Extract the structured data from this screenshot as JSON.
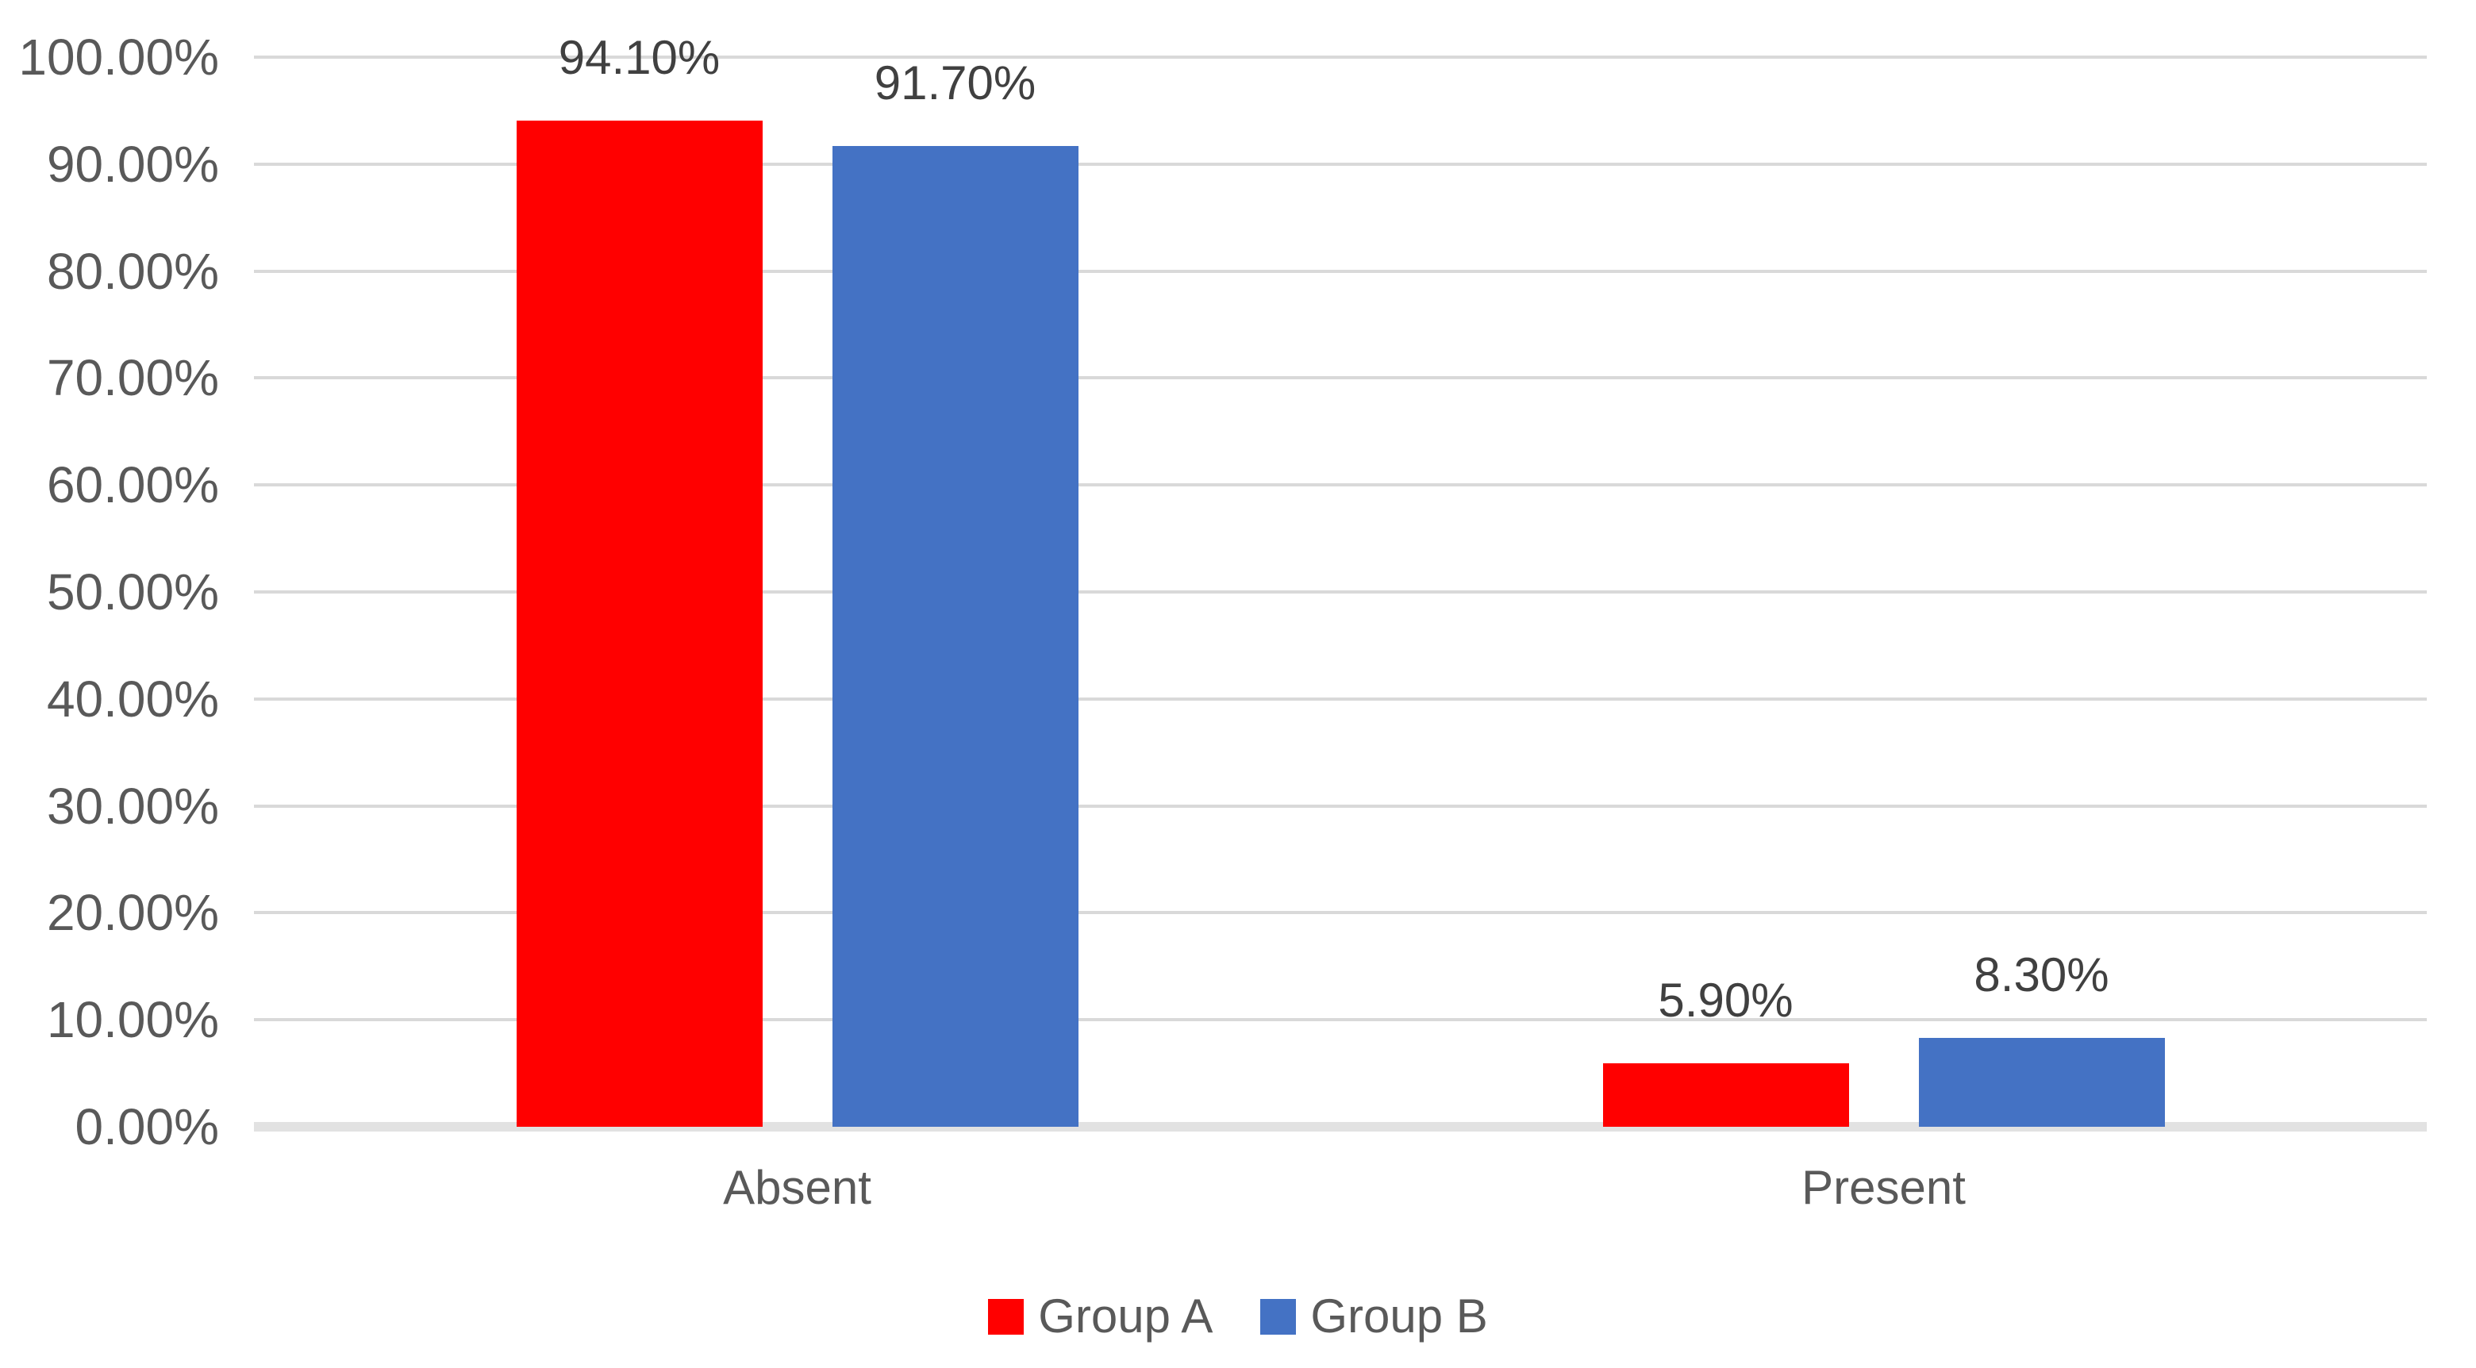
{
  "chart_data": {
    "type": "bar",
    "title": "",
    "categories": [
      "Absent",
      "Present"
    ],
    "series": [
      {
        "name": "Group A",
        "color": "#ff0000",
        "values": [
          94.1,
          5.9
        ],
        "data_labels": [
          "94.10%",
          "5.90%"
        ]
      },
      {
        "name": "Group B",
        "color": "#4472c4",
        "values": [
          91.7,
          8.3
        ],
        "data_labels": [
          "91.70%",
          "8.30%"
        ]
      }
    ],
    "y_axis": {
      "min": 0,
      "max": 100,
      "step": 10,
      "tick_labels": [
        "0.00%",
        "10.00%",
        "20.00%",
        "30.00%",
        "40.00%",
        "50.00%",
        "60.00%",
        "70.00%",
        "80.00%",
        "90.00%",
        "100.00%"
      ]
    },
    "x_axis_labels": [
      "Absent",
      "Present"
    ],
    "grid": true,
    "legend_position": "bottom",
    "colors": {
      "gridline": "#d9d9d9",
      "axis_line": "#e2e2e2",
      "tick_text": "#595959",
      "data_label_text": "#404040",
      "background": "#ffffff"
    }
  }
}
